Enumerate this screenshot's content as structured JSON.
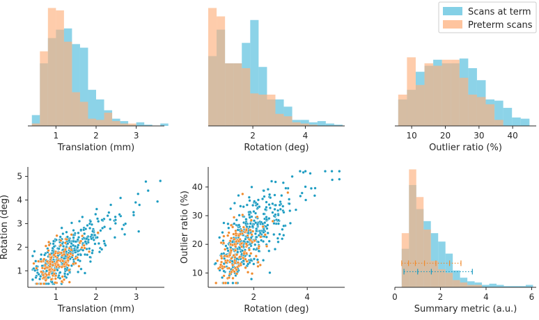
{
  "colors": {
    "term_bar": "#5bc0de",
    "term_dot": "#1a9bc1",
    "preterm_bar": "#fdb07e",
    "preterm_dot": "#f08a2c"
  },
  "legend": {
    "term_label": "Scans at term",
    "preterm_label": "Preterm scans"
  },
  "chart_data": [
    {
      "type": "bar",
      "id": "hist-translation",
      "xlabel": "Translation (mm)",
      "xlim": [
        0.3,
        3.7
      ],
      "ylim": [
        0,
        1.0
      ],
      "xticks": [
        1,
        2,
        3
      ],
      "series": [
        {
          "name": "Scans at term",
          "x0": 0.4,
          "bin_width": 0.2,
          "values": [
            0.09,
            0.52,
            0.73,
            0.8,
            0.81,
            0.68,
            0.65,
            0.3,
            0.22,
            0.13,
            0.06,
            0.04,
            0.01,
            0.03,
            0.01,
            0.0,
            0.02
          ]
        },
        {
          "name": "Preterm scans",
          "x0": 0.4,
          "bin_width": 0.2,
          "values": [
            0.02,
            0.62,
            0.98,
            0.96,
            0.7,
            0.28,
            0.2,
            0.06,
            0.05,
            0.11,
            0.04,
            0.02,
            0.02,
            0.0,
            0.0,
            0.0,
            0.0
          ]
        }
      ]
    },
    {
      "type": "bar",
      "id": "hist-rotation",
      "xlabel": "Rotation (deg)",
      "xlim": [
        0.3,
        5.5
      ],
      "ylim": [
        0,
        1.0
      ],
      "xticks": [
        2,
        4
      ],
      "series": [
        {
          "name": "Scans at term",
          "x0": 0.3,
          "bin_width": 0.32,
          "values": [
            0.58,
            0.8,
            0.52,
            0.52,
            0.69,
            0.88,
            0.49,
            0.22,
            0.22,
            0.16,
            0.05,
            0.05,
            0.03,
            0.04,
            0.02,
            0.01
          ]
        },
        {
          "name": "Preterm scans",
          "x0": 0.3,
          "bin_width": 0.32,
          "values": [
            0.98,
            0.91,
            0.52,
            0.52,
            0.48,
            0.27,
            0.26,
            0.26,
            0.1,
            0.08,
            0.03,
            0.02,
            0.01,
            0.0,
            0.0,
            0.0
          ]
        }
      ]
    },
    {
      "type": "bar",
      "id": "hist-outlier",
      "xlabel": "Outlier ratio (%)",
      "xlim": [
        5,
        47
      ],
      "ylim": [
        0,
        1.0
      ],
      "xticks": [
        10,
        20,
        30,
        40
      ],
      "series": [
        {
          "name": "Scans at term",
          "x0": 6,
          "bin_width": 2.6,
          "values": [
            0.22,
            0.3,
            0.45,
            0.5,
            0.55,
            0.52,
            0.52,
            0.56,
            0.48,
            0.38,
            0.22,
            0.21,
            0.15,
            0.07,
            0.06
          ]
        },
        {
          "name": "Preterm scans",
          "x0": 6,
          "bin_width": 2.6,
          "values": [
            0.26,
            0.57,
            0.34,
            0.52,
            0.5,
            0.55,
            0.55,
            0.4,
            0.26,
            0.24,
            0.18,
            0.05,
            0.0,
            0.0,
            0.0
          ]
        }
      ]
    },
    {
      "type": "scatter",
      "id": "scatter-translation-rotation",
      "xlabel": "Translation (mm)",
      "ylabel": "Rotation (deg)",
      "xlim": [
        0.3,
        3.7
      ],
      "ylim": [
        0.3,
        5.4
      ],
      "xticks": [
        1,
        2,
        3
      ],
      "yticks": [
        1,
        2,
        3,
        4,
        5
      ],
      "term_count": 420,
      "preterm_count": 150
    },
    {
      "type": "scatter",
      "id": "scatter-rotation-outlier",
      "xlabel": "Rotation (deg)",
      "ylabel": "Outlier ratio (%)",
      "xlim": [
        0.3,
        5.4
      ],
      "ylim": [
        5,
        47
      ],
      "xticks": [
        2,
        4
      ],
      "yticks": [
        10,
        20,
        30,
        40
      ],
      "term_count": 420,
      "preterm_count": 150
    },
    {
      "type": "bar",
      "id": "hist-summary",
      "xlabel": "Summary metric (a.u.)",
      "xlim": [
        0,
        6.2
      ],
      "ylim": [
        0,
        1.0
      ],
      "xticks": [
        0,
        2,
        4,
        6
      ],
      "series": [
        {
          "name": "Scans at term",
          "x0": 0.3,
          "bin_width": 0.32,
          "values": [
            0.32,
            0.85,
            0.65,
            0.55,
            0.45,
            0.38,
            0.28,
            0.14,
            0.08,
            0.05,
            0.04,
            0.02,
            0.03,
            0.02,
            0.01,
            0.01,
            0.01,
            0.02
          ]
        },
        {
          "name": "Preterm scans",
          "x0": 0.3,
          "bin_width": 0.32,
          "values": [
            0.45,
            0.98,
            0.75,
            0.48,
            0.22,
            0.15,
            0.12,
            0.06,
            0.04,
            0.02,
            0.02,
            0.0,
            0.0,
            0.0,
            0.0,
            0.0,
            0.0,
            0.0
          ]
        }
      ],
      "intervals": [
        {
          "name": "Preterm scans",
          "y": 0.2,
          "low": 0.3,
          "high": 2.9,
          "ticks": [
            0.3,
            0.6,
            0.9,
            1.3,
            1.8,
            2.4,
            2.9
          ]
        },
        {
          "name": "Scans at term",
          "y": 0.13,
          "low": 0.4,
          "high": 3.4,
          "ticks": [
            0.4,
            1.0,
            1.6,
            3.4
          ]
        }
      ]
    }
  ]
}
